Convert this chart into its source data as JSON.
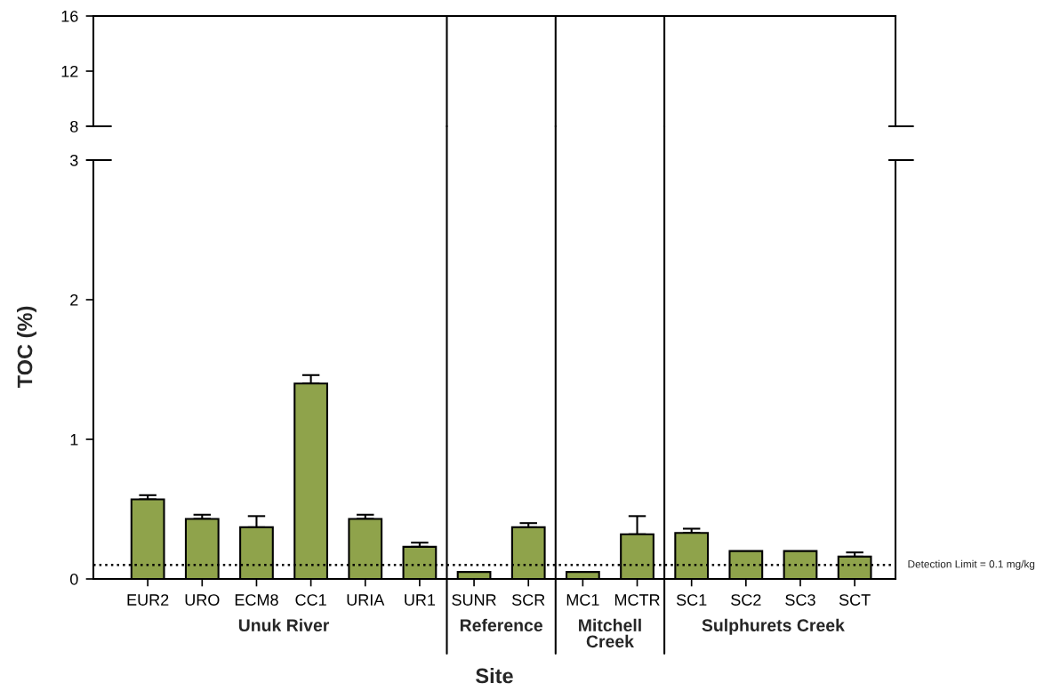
{
  "chart_data": [
    {
      "type": "other",
      "annotations": [
        "8",
        "12",
        "16"
      ]
    },
    {
      "type": "bar",
      "categories": [
        "EUR2",
        "URO",
        "ECM8",
        "CC1",
        "URIA",
        "UR1",
        "SUNR",
        "SCR",
        "MC1",
        "MCTR",
        "SC1",
        "SC2",
        "SC3",
        "SCT"
      ],
      "values": [
        0.57,
        0.43,
        0.37,
        1.4,
        0.43,
        0.23,
        0.05,
        0.37,
        0.05,
        0.32,
        0.33,
        0.2,
        0.2,
        0.16
      ],
      "errors": [
        [
          0.57,
          0.6
        ],
        [
          0.43,
          0.46
        ],
        [
          0.37,
          0.45
        ],
        [
          1.4,
          1.46
        ],
        [
          0.43,
          0.46
        ],
        [
          0.23,
          0.26
        ],
        null,
        [
          0.37,
          0.4
        ],
        null,
        [
          0.32,
          0.45
        ],
        [
          0.33,
          0.36
        ],
        null,
        null,
        [
          0.16,
          0.19
        ]
      ],
      "color": "#8fa34b",
      "ylim": [
        0,
        3
      ],
      "yticks": [
        0,
        1,
        2,
        3
      ],
      "grid": false,
      "legend": false,
      "xlabel": "Site",
      "ylabel": "TOC (%)",
      "ref_lines": [
        {
          "axis": "y",
          "value": 0.1,
          "label": "Detection Limit = 0.1 mg/kg",
          "line_style": "dotted"
        }
      ],
      "annotations": [
        "Unuk River",
        "Reference",
        "Mitchell\nCreek",
        "Sulphurets Creek"
      ]
    }
  ]
}
